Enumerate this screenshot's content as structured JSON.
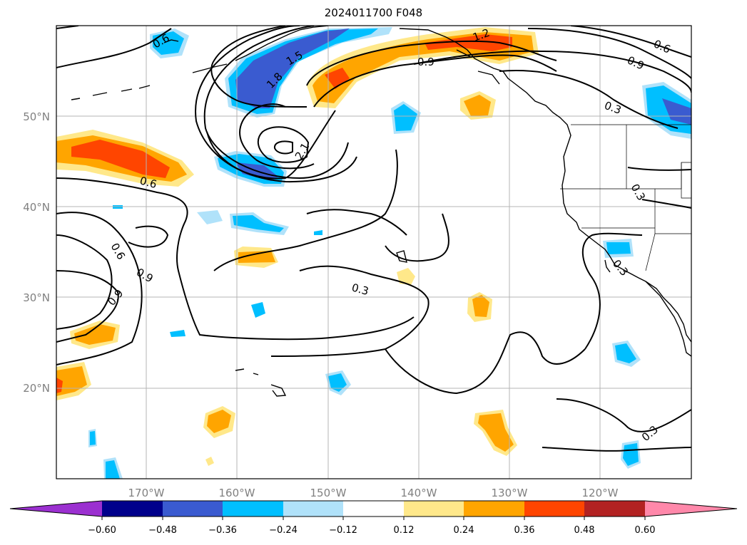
{
  "title": "2024011700 F048",
  "map": {
    "lon_range": [
      -180,
      -110
    ],
    "lat_range": [
      10,
      60
    ],
    "lat_ticks": [
      "20°N",
      "30°N",
      "40°N",
      "50°N"
    ],
    "lon_ticks": [
      "170°W",
      "160°W",
      "150°W",
      "140°W",
      "130°W",
      "120°W"
    ],
    "gridlines": true,
    "coastline_color": "#000000",
    "contour_color": "#000000",
    "contour_labels": [
      "0.9",
      "0.6",
      "0.9",
      "0.6",
      "0.3",
      "0.6",
      "1.2",
      "0.9",
      "0.9",
      "0.6",
      "0.3",
      "0.3",
      "0.3",
      "1.5",
      "1.8",
      "2.1",
      "0.3"
    ]
  },
  "colorbar": {
    "tick_labels": [
      "−0.60",
      "−0.48",
      "−0.36",
      "−0.24",
      "−0.12",
      "0.12",
      "0.24",
      "0.36",
      "0.48",
      "0.60"
    ],
    "colors": [
      "#9b30d0",
      "#00008b",
      "#3a5bd0",
      "#00bfff",
      "#b0e2fa",
      "#ffffff",
      "#ffe88a",
      "#ffa500",
      "#ff4500",
      "#b22222",
      "#ff88aa"
    ],
    "extend": "both"
  }
}
